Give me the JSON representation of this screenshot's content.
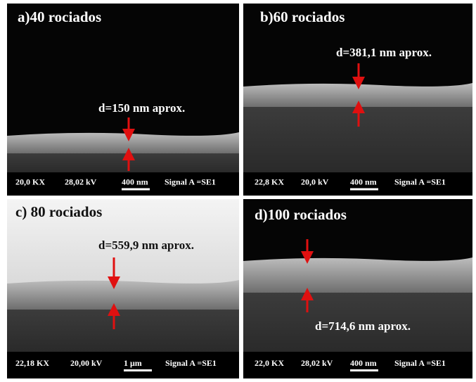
{
  "panels": [
    {
      "label": "a)40 rociados",
      "thickness": "d=150 nm aprox.",
      "info": [
        "20,0 KX",
        "28,02 kV",
        "400 nm",
        "Signal A =SE1"
      ]
    },
    {
      "label": "b)60 rociados",
      "thickness": "d=381,1 nm aprox.",
      "info": [
        "22,8 KX",
        "20,0 kV",
        "400 nm",
        "Signal A =SE1"
      ]
    },
    {
      "label": "c) 80 rociados",
      "thickness": "d=559,9 nm aprox.",
      "info": [
        "22,18 KX",
        "20,00 kV",
        "1 μm",
        "Signal A =SE1"
      ]
    },
    {
      "label": "d)100 rociados",
      "thickness": "d=714,6 nm aprox.",
      "info": [
        "22,0 KX",
        "28,02 kV",
        "400 nm",
        "Signal A =SE1"
      ]
    }
  ]
}
